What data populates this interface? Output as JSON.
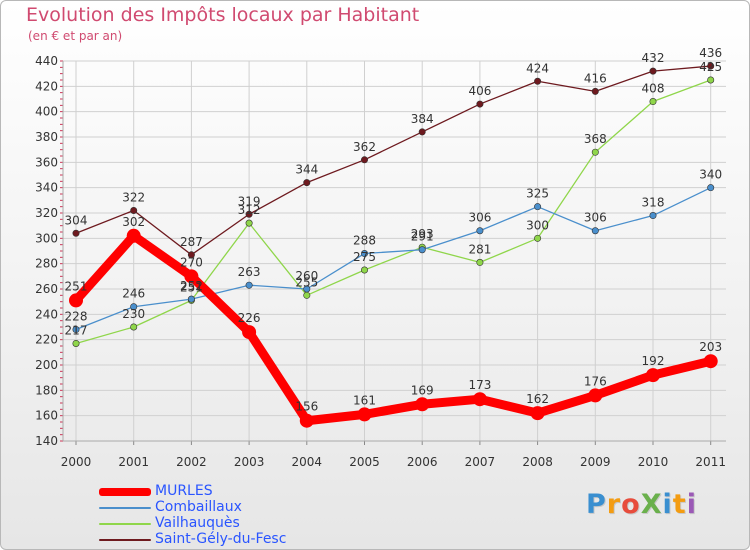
{
  "header": {
    "title": "Evolution des Impôts locaux par Habitant",
    "subtitle": "(en € et par an)"
  },
  "logo": {
    "text": "Proxiti",
    "letters": [
      {
        "ch": "P",
        "color": "#3a8fd0"
      },
      {
        "ch": "r",
        "color": "#f39c12"
      },
      {
        "ch": "o",
        "color": "#e74c3c"
      },
      {
        "ch": "X",
        "color": "#6ab04c"
      },
      {
        "ch": "i",
        "color": "#3a8fd0"
      },
      {
        "ch": "t",
        "color": "#f39c12"
      },
      {
        "ch": "i",
        "color": "#9b59b6"
      }
    ]
  },
  "chart_data": {
    "type": "line",
    "title": "Evolution des Impôts locaux par Habitant",
    "subtitle": "(en € et par an)",
    "categories": [
      "2000",
      "2001",
      "2002",
      "2003",
      "2004",
      "2005",
      "2006",
      "2007",
      "2008",
      "2009",
      "2010",
      "2011"
    ],
    "ylim": [
      140,
      440
    ],
    "yticks": [
      140,
      160,
      180,
      200,
      220,
      240,
      260,
      280,
      300,
      320,
      340,
      360,
      380,
      400,
      420,
      440
    ],
    "grid": true,
    "legend_position": "bottom-left",
    "series": [
      {
        "name": "MURLES",
        "color": "#ff0000",
        "values": [
          251,
          302,
          270,
          226,
          156,
          161,
          169,
          173,
          162,
          176,
          192,
          203
        ]
      },
      {
        "name": "Combaillaux",
        "color": "#4a8fcc",
        "values": [
          228,
          246,
          252,
          263,
          260,
          288,
          291,
          306,
          325,
          306,
          318,
          340
        ]
      },
      {
        "name": "Vailhauquès",
        "color": "#8fd64a",
        "values": [
          217,
          230,
          251,
          312,
          255,
          275,
          293,
          281,
          300,
          368,
          408,
          425
        ]
      },
      {
        "name": "Saint-Gély-du-Fesc",
        "color": "#6e1a1f",
        "values": [
          304,
          322,
          287,
          319,
          344,
          362,
          384,
          406,
          424,
          416,
          432,
          436
        ]
      }
    ],
    "value_labels": [
      [
        "251",
        "302",
        "270",
        "226",
        "156",
        "161",
        "169",
        "173",
        "162",
        "176",
        "192",
        "203"
      ],
      [
        "228",
        "246",
        "252",
        "263",
        "260",
        "288",
        "291",
        "306",
        "325",
        "306",
        "318",
        "340"
      ],
      [
        "217",
        "230",
        "251",
        "312",
        "255",
        "275",
        "293",
        "281",
        "300",
        "368",
        "408",
        "425"
      ],
      [
        "304",
        "322",
        "287",
        "319",
        "344",
        "362",
        "384",
        "406",
        "424",
        "416",
        "432",
        "436"
      ]
    ]
  }
}
